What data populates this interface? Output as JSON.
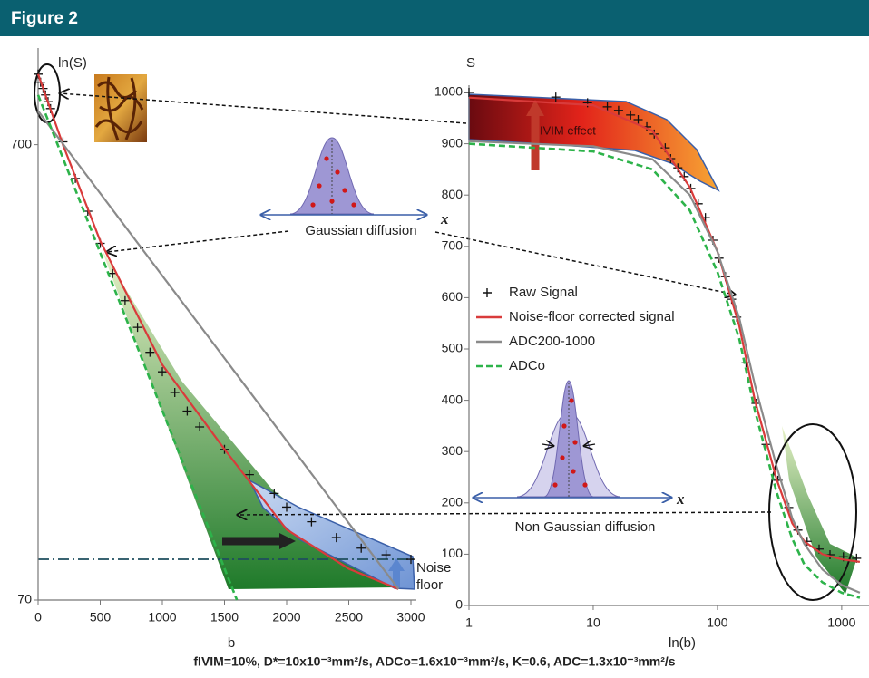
{
  "header": {
    "title": "Figure 2"
  },
  "annotations": [
    "IVIM effect",
    "Gaussian diffusion",
    "Non Gaussian diffusion",
    "Noise",
    "floor",
    "x",
    "x"
  ],
  "caption": "fIVIM=10%, D*=10x10⁻³mm²/s, ADCo=1.6x10⁻³mm²/s, K=0.6, ADC=1.3x10⁻³mm²/s",
  "chart_data": [
    {
      "type": "line",
      "y_label": "ln(S)",
      "x_label": "b",
      "xlim": [
        0,
        3000
      ],
      "xticks": [
        0,
        500,
        1000,
        1500,
        2000,
        2500,
        3000
      ],
      "ylim": [
        70,
        1100
      ],
      "yscale": "log",
      "yticks": [
        70,
        700
      ],
      "legend": false,
      "series": [
        {
          "style": "markers",
          "color": "#111111",
          "x": [
            0,
            20,
            40,
            60,
            80,
            100,
            200,
            300,
            400,
            500,
            600,
            700,
            800,
            900,
            1000,
            1100,
            1200,
            1300,
            1500,
            1700,
            1900,
            2000,
            2200,
            2400,
            2600,
            2800,
            3000
          ],
          "values": [
            1000,
            960,
            930,
            900,
            870,
            840,
            710,
            590,
            500,
            425,
            365,
            318,
            278,
            245,
            222,
            200,
            182,
            168,
            150,
            132,
            120,
            112,
            104,
            96,
            91,
            88,
            86
          ]
        },
        {
          "style": "line",
          "color": "#d93b3b",
          "x": [
            0,
            200,
            500,
            1000,
            1500,
            2000,
            2500,
            2900
          ],
          "values": [
            1000,
            700,
            430,
            230,
            150,
            100,
            82,
            74
          ]
        },
        {
          "style": "line",
          "color": "#8a8a8a",
          "x": [
            0,
            2900
          ],
          "values": [
            830,
            74
          ]
        },
        {
          "style": "dashed",
          "color": "#2db34a",
          "x": [
            0,
            1600
          ],
          "values": [
            900,
            70
          ]
        }
      ]
    },
    {
      "type": "line",
      "y_label": "S",
      "x_label": "ln(b)",
      "xlim": [
        1,
        1500
      ],
      "xscale": "log",
      "xticks": [
        1,
        10,
        100,
        1000
      ],
      "ylim": [
        0,
        1000
      ],
      "yticks": [
        0,
        100,
        200,
        300,
        400,
        500,
        600,
        700,
        800,
        900,
        1000
      ],
      "legend": "left",
      "series": [
        {
          "name": "Raw Signal",
          "style": "markers",
          "color": "#111111",
          "x": [
            1,
            5,
            9,
            13,
            16,
            20,
            23,
            27,
            31,
            38,
            42,
            48,
            54,
            61,
            70,
            80,
            92,
            103,
            116,
            130,
            143,
            170,
            204,
            246,
            307,
            375,
            444,
            527,
            658,
            805,
            1032,
            1318
          ],
          "values": [
            1000,
            991,
            980,
            972,
            965,
            956,
            947,
            933,
            919,
            892,
            871,
            853,
            836,
            813,
            783,
            756,
            712,
            677,
            641,
            597,
            562,
            473,
            394,
            314,
            244,
            191,
            147,
            125,
            110,
            99,
            95,
            92
          ]
        },
        {
          "name": "Noise-floor corrected signal",
          "style": "line",
          "color": "#d93b3b",
          "x": [
            1,
            10,
            30,
            60,
            100,
            150,
            200,
            300,
            400,
            500,
            700,
            1000,
            1400
          ],
          "values": [
            990,
            975,
            925,
            815,
            690,
            545,
            400,
            245,
            160,
            125,
            100,
            90,
            85
          ]
        },
        {
          "name": "ADC200-1000",
          "style": "line",
          "color": "#8a8a8a",
          "x": [
            1,
            10,
            30,
            60,
            100,
            150,
            200,
            300,
            400,
            500,
            700,
            1000,
            1400
          ],
          "values": [
            905,
            895,
            870,
            800,
            690,
            560,
            430,
            270,
            170,
            120,
            70,
            40,
            25
          ]
        },
        {
          "name": "ADCo",
          "style": "dashed",
          "color": "#2db34a",
          "x": [
            1,
            10,
            30,
            60,
            100,
            150,
            200,
            300,
            400,
            500,
            700,
            1000,
            1400
          ],
          "values": [
            900,
            885,
            850,
            770,
            650,
            520,
            380,
            220,
            130,
            80,
            45,
            25,
            15
          ]
        }
      ]
    }
  ]
}
